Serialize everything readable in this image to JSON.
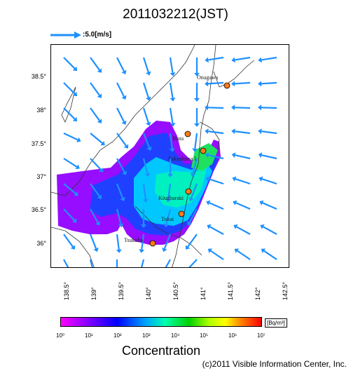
{
  "title": "2011032212(JST)",
  "reference_vector": {
    "label": ":5.0[m/s]"
  },
  "axes": {
    "lat_ticks": [
      "38.5°",
      "38°",
      "37.5°",
      "37°",
      "36.5°",
      "36°"
    ],
    "lon_ticks": [
      "138.5°",
      "139°",
      "139.5°",
      "140°",
      "140.5°",
      "141°",
      "141.5°",
      "142°",
      "142.5°"
    ]
  },
  "sites": [
    {
      "name": "Onagawa",
      "color": "#ff7a1a"
    },
    {
      "name": "Ihata",
      "color": "#ff7a1a"
    },
    {
      "name": "Fukushima I",
      "color": "#ff7a1a"
    },
    {
      "name": "Kitaibaraki",
      "color": "#ff7a1a"
    },
    {
      "name": "Tokai",
      "color": "#ff7a1a"
    },
    {
      "name": "Tsukuba",
      "color": "#ff7a1a"
    }
  ],
  "colorbar": {
    "unit": "[Bq/m³]",
    "ticks": [
      "10⁰",
      "10¹",
      "10²",
      "10³",
      "10⁴",
      "10⁵",
      "10⁶",
      "10⁷"
    ],
    "title": "Concentration"
  },
  "wind_arrow_color": "#1e90ff",
  "copyright": "(c)2011 Visible Information Center, Inc."
}
